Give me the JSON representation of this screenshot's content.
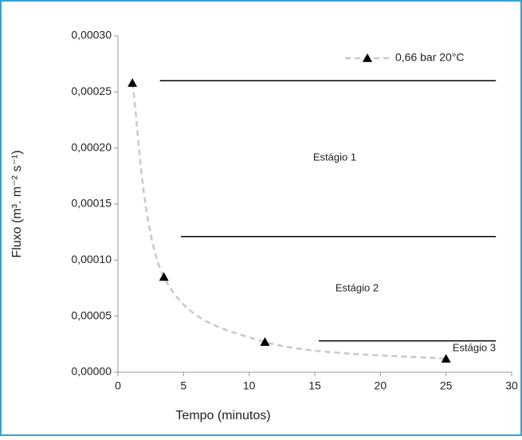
{
  "chart_data": {
    "type": "line",
    "x_label": "Tempo (minutos)",
    "y_label": "Fluxo (m³. m⁻² s⁻¹)",
    "series": [
      {
        "name": "0,66 bar 20°C",
        "color": "#000000",
        "line_color": "#c8c8c8",
        "line_style": "dashed",
        "marker": "triangle",
        "x": [
          1.1,
          3.5,
          11.2,
          25
        ],
        "values": [
          0.000258,
          8.5e-05,
          2.7e-05,
          1.2e-05
        ]
      }
    ],
    "reference_lines": [
      {
        "y": 0.00026,
        "x": [
          3.2,
          28.8
        ]
      },
      {
        "y": 0.000121,
        "x": [
          4.8,
          28.8
        ]
      },
      {
        "y": 2.8e-05,
        "x": [
          15.3,
          28.8
        ]
      }
    ],
    "annotations": [
      "Estágio 1",
      "Estágio 2",
      "Estágio 3"
    ],
    "xlim": [
      0,
      30
    ],
    "xticks": [
      0,
      5,
      10,
      15,
      20,
      25,
      30
    ],
    "ylim": [
      0,
      0.0003
    ],
    "yticks": [
      {
        "value": 0,
        "label": "0,00000"
      },
      {
        "value": 5e-05,
        "label": "0,00005"
      },
      {
        "value": 0.0001,
        "label": "0,00010"
      },
      {
        "value": 0.00015,
        "label": "0,00015"
      },
      {
        "value": 0.0002,
        "label": "0,00020"
      },
      {
        "value": 0.00025,
        "label": "0,00025"
      },
      {
        "value": 0.0003,
        "label": "0,00030"
      }
    ],
    "legend": "top-right",
    "grid": false
  }
}
